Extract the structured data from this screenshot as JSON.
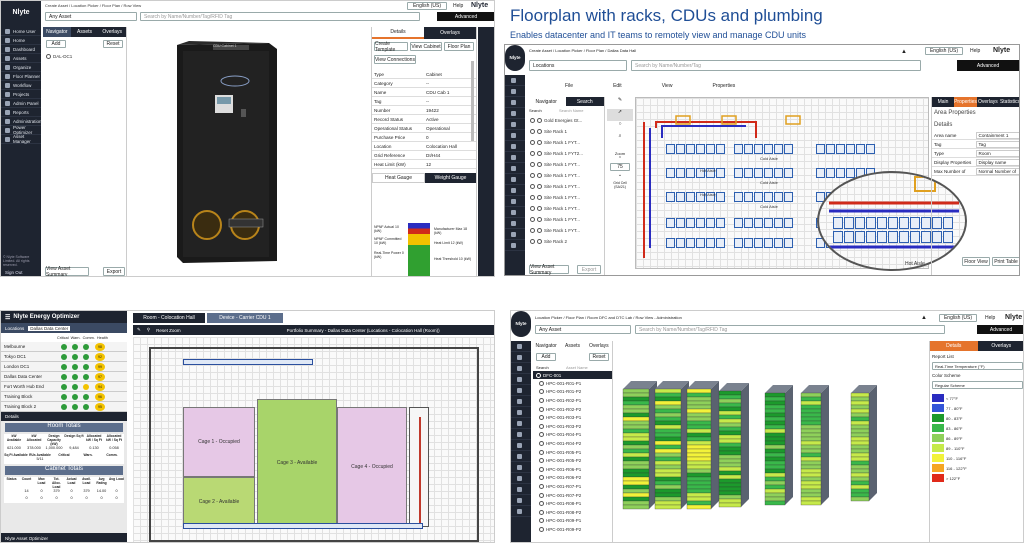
{
  "heading": {
    "title": "Floorplan with racks, CDUs and plumbing",
    "subtitle": "Enables datacenter and IT teams to remotely view and manage CDU units"
  },
  "colors": {
    "accent": "#1f4e96",
    "dark": "#1e2430",
    "nav_tab": "#3b4a63",
    "orange_tab": "#e5742c"
  },
  "panel1": {
    "logo": "Nlyte",
    "breadcrumb": "Create Asset / Location Picker / Floor Plan / Row View",
    "asset_select": "Any Asset",
    "search_placeholder": "Search by Name/Number/Tag/RFID Tag",
    "language": "English (US)",
    "help": "Help",
    "brand": "Nlyte",
    "advanced": "Advanced",
    "nav_items": [
      "Home User",
      "Home",
      "Dashboard",
      "Assets",
      "Organize",
      "Floor Planner",
      "Workflow",
      "Projects",
      "Admin Panel",
      "Reports",
      "Administration",
      "Power Optimizer",
      "Asset Manager"
    ],
    "tree_tabs": [
      "Navigator",
      "Assets",
      "Overlays"
    ],
    "add_label": "Add",
    "reset_label": "Reset",
    "tree_root": "DAL-DC1",
    "asset_label": "CDU Cabinet 1",
    "details_tabs": [
      "Details",
      "Overlays"
    ],
    "actions": [
      "Create Template",
      "View Cabinet",
      "Floor Plan"
    ],
    "view_connections": "View Connections",
    "properties": [
      [
        "Type",
        "Cabinet"
      ],
      [
        "Category",
        "--"
      ],
      [
        "Name",
        "CDU Cab 1"
      ],
      [
        "Tag",
        "--"
      ],
      [
        "Number",
        "19422"
      ],
      [
        "Record Status",
        "Active"
      ],
      [
        "Operational Status",
        "Operational"
      ],
      [
        "Purchase Price",
        "0"
      ],
      [
        "Location",
        "Colocation Hall"
      ],
      [
        "Grid Reference",
        "DI/H44"
      ],
      [
        "Heat Limit (kW)",
        "12"
      ]
    ],
    "gauge_tabs": [
      "Heat Gauge",
      "Weight Gauge"
    ],
    "gauge_labels": [
      "NPNF Actual 10 (kW)",
      "NPNF Committed 10 (kW)",
      "Real-Time Power 0 (kW)",
      "Manufacturer Max 18 (kW)",
      "Heat Limit 12 (kW)",
      "Heat Threshold 10 (kW)"
    ],
    "footer_buttons": [
      "View Asset Summary",
      "Export"
    ],
    "sign_out": "Sign Out",
    "copyright": "© Nlyte Software Limited. All rights reserved."
  },
  "panel2": {
    "logo": "Nlyte",
    "breadcrumb": "Create Asset / Location Picker / Floor Plan / Dallas Data Hall",
    "locations": "Locations",
    "search_placeholder": "Search by Name/Number/Tag",
    "language": "English (US)",
    "help": "Help",
    "brand": "Nlyte",
    "advanced": "Advanced",
    "menus": [
      "File",
      "Edit",
      "View",
      "Properties"
    ],
    "tree_tabs": [
      "Navigator",
      "Search"
    ],
    "search_label": "Search",
    "search_hint": "Search Name",
    "tree_items": [
      "Gold Energies Gt...",
      "Site Rack 1",
      "Site Rack 1 FYT...",
      "Site Rack 1 FYT2...",
      "Site Rack 1 FYT...",
      "Site Rack 1 FYT...",
      "Site Rack 1 FYT...",
      "Site Rack 1 FYT...",
      "Site Rack 1 FYT...",
      "Site Rack 1 FYT...",
      "Site Rack 1 FYT...",
      "Site Rack 2"
    ],
    "zoom_label": "Zoom",
    "zoom_value": "75",
    "grid_cell": "Grid Cell (SA/21)",
    "aisle_labels": [
      "Cold Aisle",
      "Hot Aisle",
      "Cold Aisle",
      "Hot Aisle",
      "Cold Aisle",
      "Hot Aisle"
    ],
    "right_tabs": [
      "Main",
      "Properties",
      "Overlays",
      "Statistics"
    ],
    "area_properties": "Area Properties",
    "details": "Details",
    "detail_rows": [
      [
        "Area name",
        "Containment 1"
      ],
      [
        "Tag",
        "Tag"
      ],
      [
        "Type",
        "Room"
      ],
      [
        "Display Properties",
        "Display name"
      ],
      [
        "Max Number of",
        "Normal Number of"
      ]
    ],
    "footer_buttons": [
      "View Asset Summary",
      "Export"
    ],
    "floor_status": "Floor View",
    "print_label": "Print Table"
  },
  "panel3": {
    "title": "Nlyte Energy Optimizer",
    "locations_label": "Locations",
    "locations_value": "Dallas Data Center",
    "columns": [
      "Critical",
      "Warn.",
      "Comm.",
      "Health"
    ],
    "sites": [
      {
        "name": "Melbourne",
        "colors": [
          "#2e9b3a",
          "#2e9b3a",
          "#2e9b3a",
          "#f3c300"
        ],
        "score": "98"
      },
      {
        "name": "Tokyo DC1",
        "colors": [
          "#2e9b3a",
          "#2e9b3a",
          "#2e9b3a",
          "#f3c300"
        ],
        "score": "92"
      },
      {
        "name": "London DC1",
        "colors": [
          "#2e9b3a",
          "#2e9b3a",
          "#2e9b3a",
          "#f3c300"
        ],
        "score": "99"
      },
      {
        "name": "Dallas Data Center",
        "colors": [
          "#2e9b3a",
          "#2e9b3a",
          "#2e9b3a",
          "#f3c300"
        ],
        "score": "97"
      },
      {
        "name": "Fort Worth Hub End",
        "colors": [
          "#2e9b3a",
          "#2e9b3a",
          "#f3c300",
          "#f3c300"
        ],
        "score": "94"
      },
      {
        "name": "Training Block",
        "colors": [
          "#2e9b3a",
          "#2e9b3a",
          "#2e9b3a",
          "#f3c300"
        ],
        "score": "96"
      },
      {
        "name": "Training Block 2",
        "colors": [
          "#2e9b3a",
          "#2e9b3a",
          "#2e9b3a",
          "#f3c300"
        ],
        "score": "95"
      }
    ],
    "details_label": "Details",
    "room_totals": "Room Totals",
    "room_headers": [
      "kW Available",
      "kW Allocated",
      "Design Capacity (kW)",
      "Design Sq ft",
      "Allocated kW / Sq Ft",
      "Allocated kW / Sq Ft"
    ],
    "room_values": [
      "621.000",
      "378.000",
      "1,000.000",
      "9,484",
      "0.130",
      "0.058"
    ],
    "sqft_headers": [
      "Sq Ft Available",
      "RUs Available",
      "Critical",
      "Warn.",
      "Comm."
    ],
    "sqft_values": [
      "",
      "5/11",
      "",
      "",
      ""
    ],
    "cabinet_totals": "Cabinet Totals",
    "cab_headers": [
      "Status",
      "Count",
      "Max Load",
      "Tot. Alloc. Load",
      "Actual Load",
      "Avail. Load",
      "Avg Rating",
      "Avg Load"
    ],
    "cab_rows": [
      [
        "",
        "14",
        "0",
        "379",
        "0",
        "379",
        "14.00",
        "0"
      ],
      [
        "",
        "0",
        "0",
        "0",
        "0",
        "0",
        "0",
        "0"
      ]
    ],
    "optimizer_label": "Nlyte Asset Optimizer",
    "floor_tabs": [
      "Room - Colocation Hall",
      "Device - Carrier CDU 1"
    ],
    "reset_zoom": "Reset Zoom",
    "portfolio": "Portfolio Summary - Dallas Data Center (Locations - Colocation Hall (Room))",
    "cages": [
      "Cage 1 - Occupied",
      "Cage 2 - Available",
      "Cage 3 - Available",
      "Cage 4 - Occupied"
    ]
  },
  "panel4": {
    "logo": "Nlyte",
    "breadcrumb": "Location Picker / Floor Plan / Room DFC and DTC Lab / Row View - Administration",
    "asset_select": "Any Asset",
    "search_placeholder": "Search by Name/Number/Tag/RFID Tag",
    "language": "English (US)",
    "help": "Help",
    "brand": "Nlyte",
    "advanced": "Advanced",
    "tree_tabs": [
      "Navigator",
      "Assets",
      "Overlays"
    ],
    "add_label": "Add",
    "reset_label": "Reset",
    "search_label": "Search",
    "search_hint": "Asset Name",
    "tree_root": "DFC-001",
    "tree_items": [
      "HPC-001-R01-P1",
      "HPC-001-R01-P2",
      "HPC-001-R02-P1",
      "HPC-001-R02-P2",
      "HPC-001-R03-P1",
      "HPC-001-R03-P2",
      "HPC-001-R04-P1",
      "HPC-001-R04-P2",
      "HPC-001-R05-P1",
      "HPC-001-R05-P2",
      "HPC-001-R06-P1",
      "HPC-001-R06-P2",
      "HPC-001-R07-P1",
      "HPC-001-R07-P2",
      "HPC-001-R08-P1",
      "HPC-001-R08-P2",
      "HPC-001-R09-P1",
      "HPC-001-R09-P2"
    ],
    "right_tabs": [
      "Details",
      "Overlays"
    ],
    "report_list": "Report List",
    "report_value": "Real-Time Temperature (°F)",
    "color_scheme": "Color Scheme",
    "color_scheme_value": "Regular Scheme",
    "legend": [
      {
        "label": "< 77°F",
        "color": "#2a2cc0"
      },
      {
        "label": "77 - 80°F",
        "color": "#3355d8"
      },
      {
        "label": "80 - 83°F",
        "color": "#1c9a2c"
      },
      {
        "label": "83 - 86°F",
        "color": "#39b84a"
      },
      {
        "label": "86 - 89°F",
        "color": "#8ed05a"
      },
      {
        "label": "89 - 110°F",
        "color": "#c6ea4a"
      },
      {
        "label": "110 - 116°F",
        "color": "#f2f23a"
      },
      {
        "label": "116 - 122°F",
        "color": "#f5a623"
      },
      {
        "label": "> 122°F",
        "color": "#e02a1a"
      }
    ]
  }
}
